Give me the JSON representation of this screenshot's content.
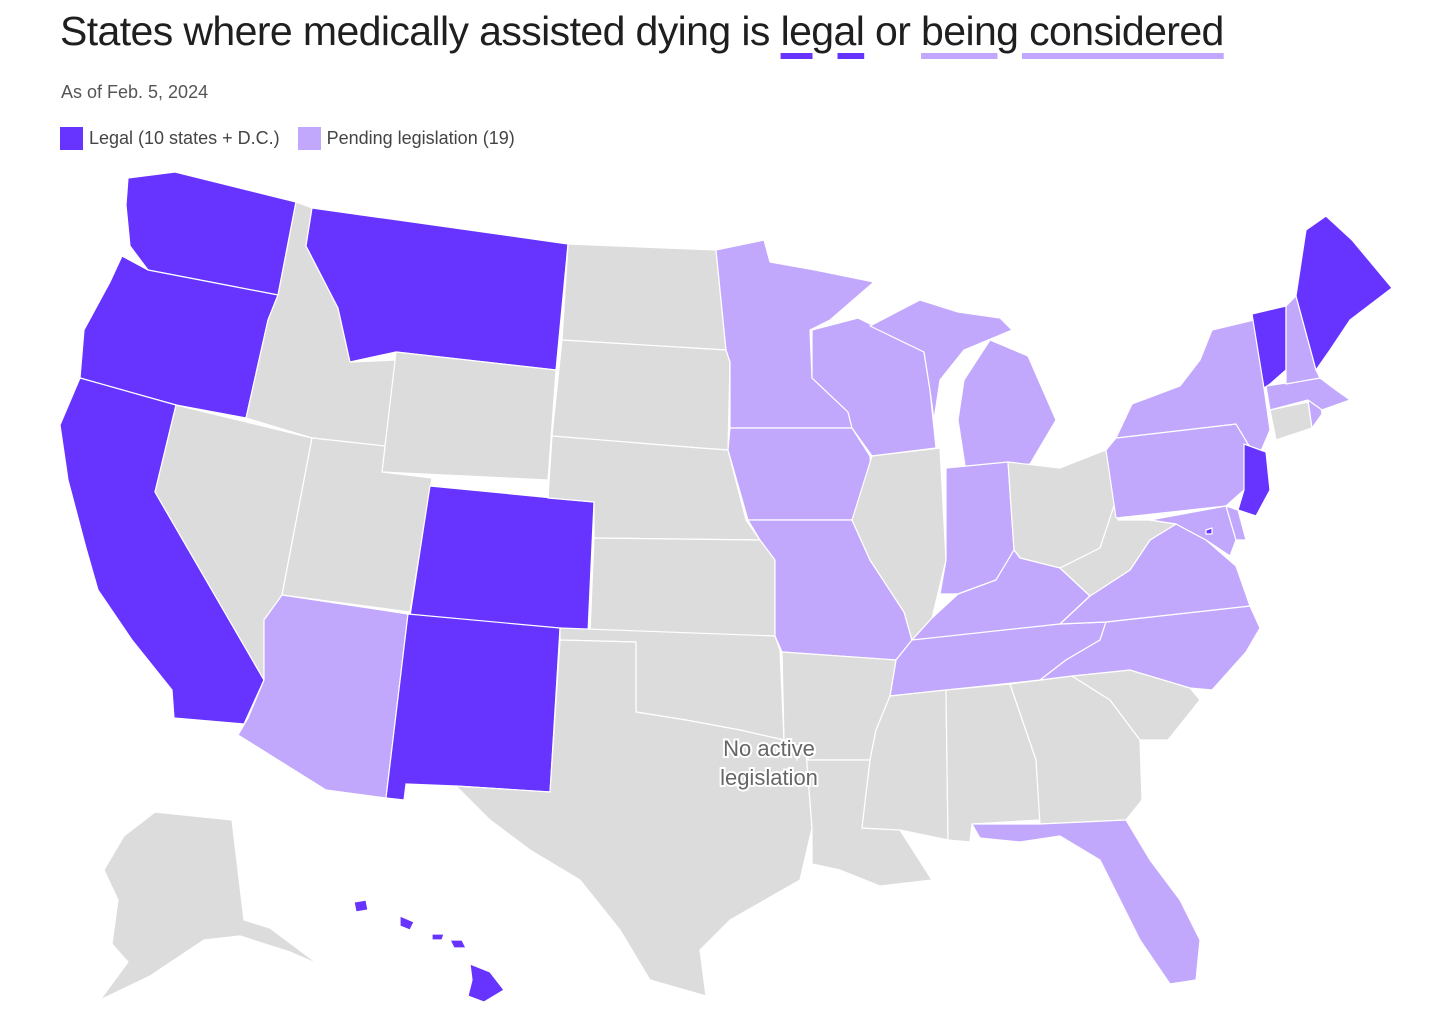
{
  "title": {
    "prefix": "States where medically assisted dying is ",
    "legal_word": "legal",
    "connector": " or ",
    "pending_word": "being considered"
  },
  "subtitle": "As of Feb. 5, 2024",
  "legend": [
    {
      "label": "Legal (10 states + D.C.)",
      "color": "#6633ff"
    },
    {
      "label": "Pending legislation (19)",
      "color": "#c1a8fc"
    }
  ],
  "colors": {
    "legal": "#6633ff",
    "pending": "#c1a8fc",
    "none": "#dcdcdc"
  },
  "annotation": {
    "line1": "No active",
    "line2": "legislation"
  },
  "chart_data": {
    "type": "choropleth",
    "categories": [
      "Legal",
      "Pending legislation",
      "No active legislation"
    ],
    "legal": [
      "Washington",
      "Oregon",
      "California",
      "Montana",
      "Colorado",
      "New Mexico",
      "Hawaii",
      "Vermont",
      "Maine",
      "New Jersey",
      "District of Columbia"
    ],
    "pending": [
      "Arizona",
      "Minnesota",
      "Iowa",
      "Missouri",
      "Wisconsin",
      "Michigan",
      "Indiana",
      "Kentucky",
      "Tennessee",
      "North Carolina",
      "Virginia",
      "Maryland",
      "Delaware",
      "Pennsylvania",
      "New York",
      "Massachusetts",
      "New Hampshire",
      "Rhode Island",
      "Florida"
    ],
    "none": [
      "Alaska",
      "Idaho",
      "Nevada",
      "Utah",
      "Wyoming",
      "North Dakota",
      "South Dakota",
      "Nebraska",
      "Kansas",
      "Oklahoma",
      "Texas",
      "Arkansas",
      "Louisiana",
      "Mississippi",
      "Alabama",
      "Georgia",
      "South Carolina",
      "Illinois",
      "Ohio",
      "West Virginia",
      "Connecticut"
    ]
  }
}
